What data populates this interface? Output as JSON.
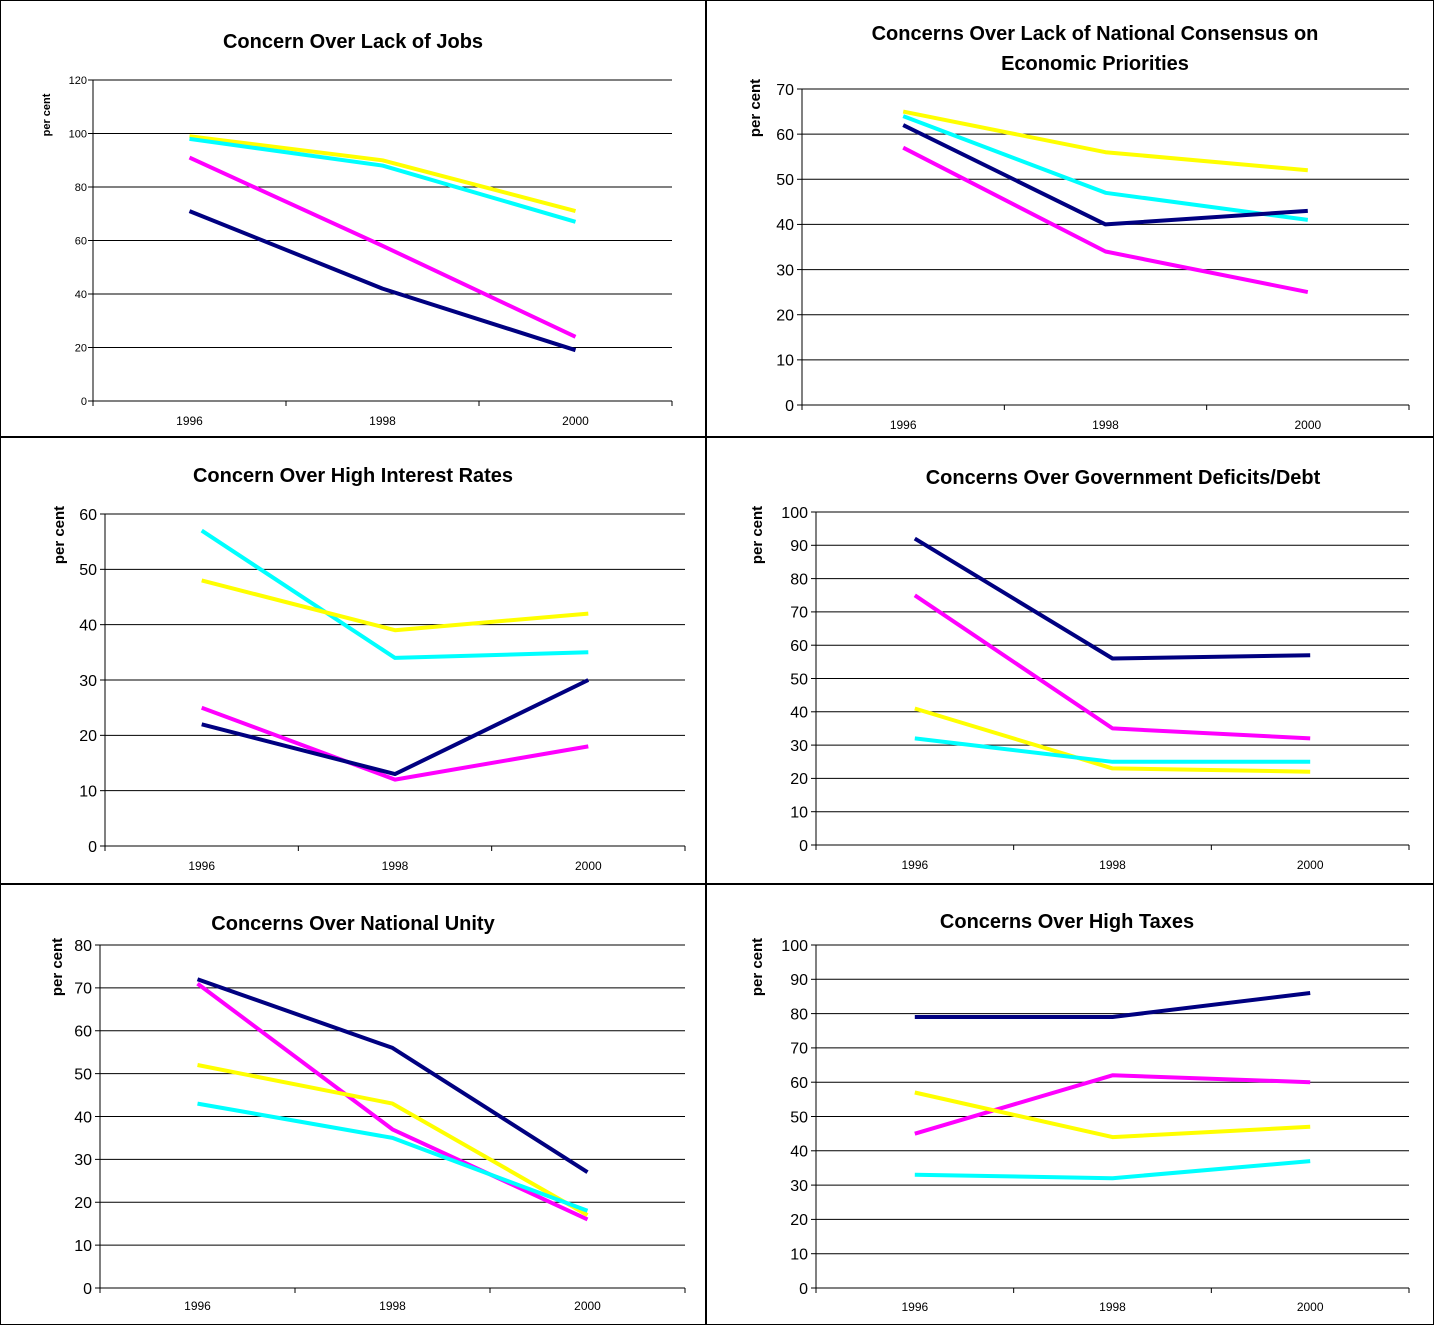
{
  "chart_data": [
    {
      "type": "line",
      "title": "Concern Over Lack of Jobs",
      "ylabel": "per cent",
      "categories": [
        "1996",
        "1998",
        "2000"
      ],
      "ylim": [
        0,
        120
      ],
      "ytick_step": 20,
      "grid": true,
      "series": [
        {
          "color": "#ffff00",
          "values": [
            99,
            90,
            71
          ]
        },
        {
          "color": "#00ffff",
          "values": [
            98,
            88,
            67
          ]
        },
        {
          "color": "#ff00ff",
          "values": [
            91,
            58,
            24
          ]
        },
        {
          "color": "#000080",
          "values": [
            71,
            42,
            19
          ]
        }
      ]
    },
    {
      "type": "line",
      "title": "Concerns Over Lack of National Consensus on Economic Priorities",
      "ylabel": "per cent",
      "categories": [
        "1996",
        "1998",
        "2000"
      ],
      "ylim": [
        0,
        70
      ],
      "ytick_step": 10,
      "grid": true,
      "series": [
        {
          "color": "#ffff00",
          "values": [
            65,
            56,
            52
          ]
        },
        {
          "color": "#00ffff",
          "values": [
            64,
            47,
            41
          ]
        },
        {
          "color": "#000080",
          "values": [
            62,
            40,
            43
          ]
        },
        {
          "color": "#ff00ff",
          "values": [
            57,
            34,
            25
          ]
        }
      ]
    },
    {
      "type": "line",
      "title": "Concern Over High Interest Rates",
      "ylabel": "per cent",
      "categories": [
        "1996",
        "1998",
        "2000"
      ],
      "ylim": [
        0,
        60
      ],
      "ytick_step": 10,
      "grid": true,
      "series": [
        {
          "color": "#00ffff",
          "values": [
            57,
            34,
            35
          ]
        },
        {
          "color": "#ffff00",
          "values": [
            48,
            39,
            42
          ]
        },
        {
          "color": "#ff00ff",
          "values": [
            25,
            12,
            18
          ]
        },
        {
          "color": "#000080",
          "values": [
            22,
            13,
            30
          ]
        }
      ]
    },
    {
      "type": "line",
      "title": "Concerns Over Government Deficits/Debt",
      "ylabel": "per cent",
      "categories": [
        "1996",
        "1998",
        "2000"
      ],
      "ylim": [
        0,
        100
      ],
      "ytick_step": 10,
      "grid": true,
      "series": [
        {
          "color": "#000080",
          "values": [
            92,
            56,
            57
          ]
        },
        {
          "color": "#ff00ff",
          "values": [
            75,
            35,
            32
          ]
        },
        {
          "color": "#ffff00",
          "values": [
            41,
            23,
            22
          ]
        },
        {
          "color": "#00ffff",
          "values": [
            32,
            25,
            25
          ]
        }
      ]
    },
    {
      "type": "line",
      "title": "Concerns Over National Unity",
      "ylabel": "per cent",
      "categories": [
        "1996",
        "1998",
        "2000"
      ],
      "ylim": [
        0,
        80
      ],
      "ytick_step": 10,
      "grid": true,
      "series": [
        {
          "color": "#000080",
          "values": [
            72,
            56,
            27
          ]
        },
        {
          "color": "#ff00ff",
          "values": [
            71,
            37,
            16
          ]
        },
        {
          "color": "#ffff00",
          "values": [
            52,
            43,
            17
          ]
        },
        {
          "color": "#00ffff",
          "values": [
            43,
            35,
            18
          ]
        }
      ]
    },
    {
      "type": "line",
      "title": "Concerns Over High Taxes",
      "ylabel": "per cent",
      "categories": [
        "1996",
        "1998",
        "2000"
      ],
      "ylim": [
        0,
        100
      ],
      "ytick_step": 10,
      "grid": true,
      "series": [
        {
          "color": "#000080",
          "values": [
            79,
            79,
            86
          ]
        },
        {
          "color": "#ff00ff",
          "values": [
            45,
            62,
            60
          ]
        },
        {
          "color": "#ffff00",
          "values": [
            57,
            44,
            47
          ]
        },
        {
          "color": "#00ffff",
          "values": [
            33,
            32,
            37
          ]
        }
      ]
    }
  ]
}
